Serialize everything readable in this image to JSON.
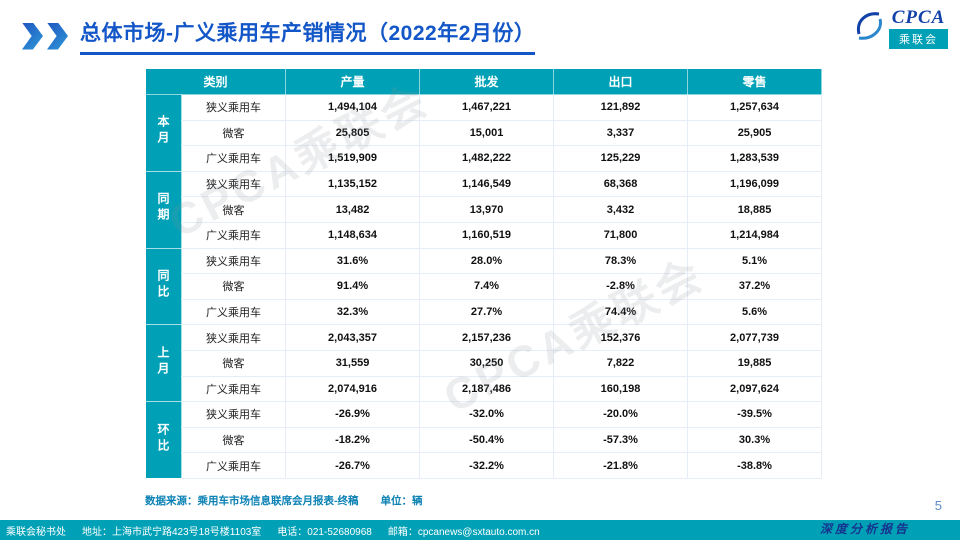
{
  "page": {
    "title": "总体市场-广义乘用车产销情况（2022年2月份）",
    "page_number": "5",
    "report_tag": "深度分析报告",
    "watermark": "CPCA乘联会"
  },
  "logo": {
    "brand": "CPCA",
    "badge": "乘联会"
  },
  "table": {
    "headers": [
      "类别",
      "产量",
      "批发",
      "出口",
      "零售"
    ],
    "groups": [
      {
        "label": "本月",
        "rows": [
          {
            "category": "狭义乘用车",
            "values": [
              "1,494,104",
              "1,467,221",
              "121,892",
              "1,257,634"
            ]
          },
          {
            "category": "微客",
            "values": [
              "25,805",
              "15,001",
              "3,337",
              "25,905"
            ]
          },
          {
            "category": "广义乘用车",
            "values": [
              "1,519,909",
              "1,482,222",
              "125,229",
              "1,283,539"
            ]
          }
        ]
      },
      {
        "label": "同期",
        "rows": [
          {
            "category": "狭义乘用车",
            "values": [
              "1,135,152",
              "1,146,549",
              "68,368",
              "1,196,099"
            ]
          },
          {
            "category": "微客",
            "values": [
              "13,482",
              "13,970",
              "3,432",
              "18,885"
            ]
          },
          {
            "category": "广义乘用车",
            "values": [
              "1,148,634",
              "1,160,519",
              "71,800",
              "1,214,984"
            ]
          }
        ]
      },
      {
        "label": "同比",
        "rows": [
          {
            "category": "狭义乘用车",
            "values": [
              "31.6%",
              "28.0%",
              "78.3%",
              "5.1%"
            ]
          },
          {
            "category": "微客",
            "values": [
              "91.4%",
              "7.4%",
              "-2.8%",
              "37.2%"
            ]
          },
          {
            "category": "广义乘用车",
            "values": [
              "32.3%",
              "27.7%",
              "74.4%",
              "5.6%"
            ]
          }
        ]
      },
      {
        "label": "上月",
        "rows": [
          {
            "category": "狭义乘用车",
            "values": [
              "2,043,357",
              "2,157,236",
              "152,376",
              "2,077,739"
            ]
          },
          {
            "category": "微客",
            "values": [
              "31,559",
              "30,250",
              "7,822",
              "19,885"
            ]
          },
          {
            "category": "广义乘用车",
            "values": [
              "2,074,916",
              "2,187,486",
              "160,198",
              "2,097,624"
            ]
          }
        ]
      },
      {
        "label": "环比",
        "rows": [
          {
            "category": "狭义乘用车",
            "values": [
              "-26.9%",
              "-32.0%",
              "-20.0%",
              "-39.5%"
            ]
          },
          {
            "category": "微客",
            "values": [
              "-18.2%",
              "-50.4%",
              "-57.3%",
              "30.3%"
            ]
          },
          {
            "category": "广义乘用车",
            "values": [
              "-26.7%",
              "-32.2%",
              "-21.8%",
              "-38.8%"
            ]
          }
        ]
      }
    ],
    "footnote": {
      "source": "数据来源：乘用车市场信息联席会月报表-终稿",
      "unit": "单位：辆"
    }
  },
  "footer": {
    "secretariat": "乘联会秘书处",
    "address": "地址：上海市武宁路423号18号楼1103室",
    "phone": "电话：021-52680968",
    "email_label": "邮箱：",
    "email": "cpcanews@sxtauto.com.cn"
  },
  "colors": {
    "teal": "#00A1B6",
    "title_blue": "#1256C8",
    "row_alt": "#DBE5F1"
  }
}
